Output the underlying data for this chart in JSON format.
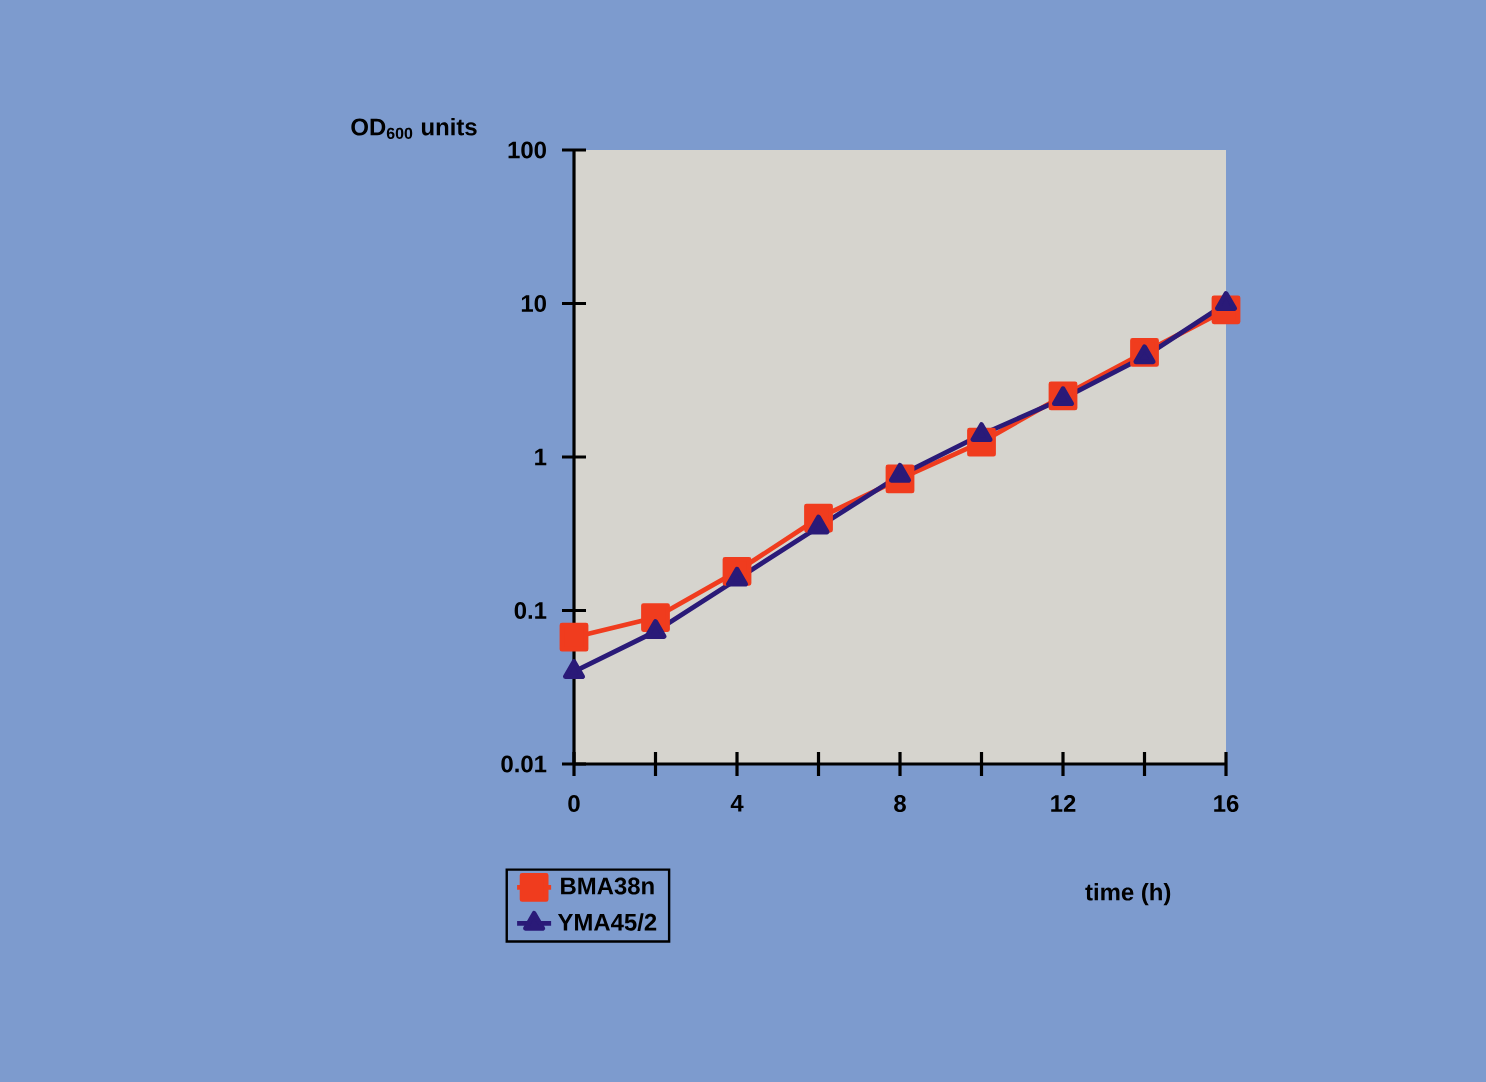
{
  "chart_data": {
    "type": "line",
    "ylabel": "OD$_{600}$ units",
    "xlabel": "time   (h)",
    "x": [
      0,
      2,
      4,
      6,
      8,
      10,
      12,
      14,
      16
    ],
    "series": [
      {
        "name": "BMA38n",
        "color": "#f03c1e",
        "marker": "square",
        "values": [
          0.067,
          0.09,
          0.18,
          0.4,
          0.72,
          1.25,
          2.5,
          4.8,
          9.1
        ]
      },
      {
        "name": "YMA45/2",
        "color": "#2a1a78",
        "marker": "triangle",
        "values": [
          0.04,
          0.073,
          0.16,
          0.35,
          0.76,
          1.4,
          2.4,
          4.5,
          10
        ]
      }
    ],
    "log": "y",
    "xlim": [
      0,
      16
    ],
    "ylim": [
      0.01,
      100
    ],
    "xticks": [
      0,
      {
        "value": 2,
        "label": null
      },
      4,
      {
        "value": 6,
        "label": null
      },
      8,
      {
        "value": 10,
        "label": null
      },
      12,
      {
        "value": 14,
        "label": null
      },
      16
    ],
    "yticks": [
      0.01,
      0.1,
      1,
      10,
      100
    ],
    "grid": false,
    "legend": "bottom",
    "line_style": "solid"
  }
}
